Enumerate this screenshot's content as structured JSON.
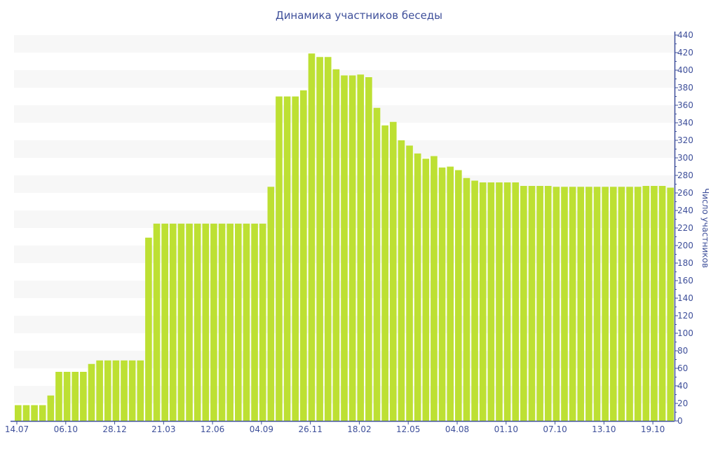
{
  "chart_data": {
    "type": "bar",
    "title": "Динамика участников беседы",
    "xlabel": "",
    "ylabel": "Число участников",
    "ylim": [
      0,
      440
    ],
    "ytick_step": 20,
    "yaxis_position": "right",
    "grid": "alternating horizontal bands",
    "bar_color": "#bde033",
    "axis_color": "#3e4f9a",
    "tick_every_n_bars": 6,
    "tick_labels": [
      "14.07",
      "06.10",
      "28.12",
      "21.03",
      "12.06",
      "04.09",
      "26.11",
      "18.02",
      "12.05",
      "04.08",
      "01.10",
      "07.10",
      "13.10",
      "19.10"
    ],
    "values": [
      18,
      18,
      18,
      18,
      29,
      56,
      56,
      56,
      56,
      65,
      69,
      69,
      69,
      69,
      69,
      69,
      209,
      225,
      225,
      225,
      225,
      225,
      225,
      225,
      225,
      225,
      225,
      225,
      225,
      225,
      225,
      267,
      370,
      370,
      370,
      377,
      419,
      415,
      415,
      401,
      394,
      394,
      395,
      392,
      357,
      337,
      341,
      320,
      314,
      305,
      299,
      302,
      289,
      290,
      286,
      277,
      274,
      272,
      272,
      272,
      272,
      272,
      268,
      268,
      268,
      268,
      267,
      267,
      267,
      267,
      267,
      267,
      267,
      267,
      267,
      267,
      267,
      268,
      268,
      268,
      266
    ]
  }
}
